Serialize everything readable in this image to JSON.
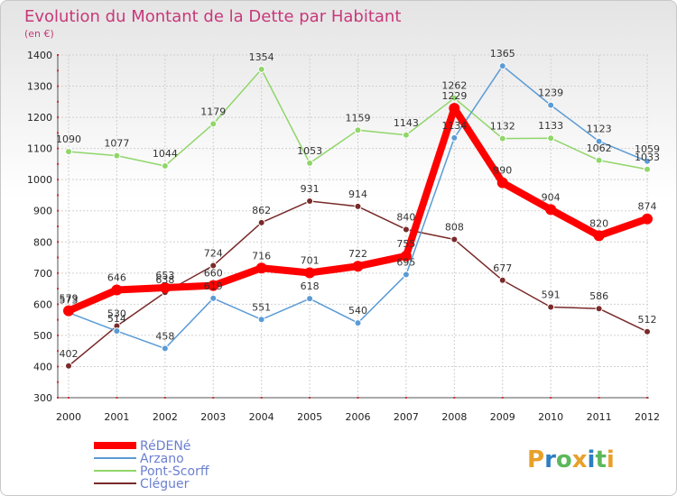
{
  "chart_data": {
    "type": "line",
    "title": "Evolution du Montant de la Dette par Habitant",
    "subtitle": "(en €)",
    "x": [
      "2000",
      "2001",
      "2002",
      "2003",
      "2004",
      "2005",
      "2006",
      "2007",
      "2008",
      "2009",
      "2010",
      "2011",
      "2012"
    ],
    "ylim": [
      300,
      1400
    ],
    "yticks": [
      300,
      400,
      500,
      600,
      700,
      800,
      900,
      1000,
      1100,
      1200,
      1300,
      1400
    ],
    "grid": true,
    "legend_placement": "bottom-left",
    "series": [
      {
        "name": "RéDENé",
        "color": "#ff0000",
        "values": [
          579,
          646,
          653,
          660,
          716,
          701,
          722,
          755,
          1229,
          990,
          904,
          820,
          874
        ]
      },
      {
        "name": "Arzano",
        "color": "#5b9bd5",
        "values": [
          573,
          514,
          458,
          619,
          551,
          618,
          540,
          695,
          1134,
          1365,
          1239,
          1123,
          1059
        ]
      },
      {
        "name": "Pont-Scorff",
        "color": "#90d66a",
        "values": [
          1090,
          1077,
          1044,
          1179,
          1354,
          1053,
          1159,
          1143,
          1262,
          1132,
          1133,
          1062,
          1033
        ]
      },
      {
        "name": "Cléguer",
        "color": "#7a2a2a",
        "values": [
          402,
          530,
          638,
          724,
          862,
          931,
          914,
          840,
          808,
          677,
          591,
          586,
          512
        ]
      }
    ]
  },
  "logo": {
    "letters": [
      "P",
      "r",
      "o",
      "x",
      "i",
      "t",
      "i"
    ],
    "colors": [
      "#e8a02a",
      "#2c7fc4",
      "#5cb85c",
      "#e8a02a",
      "#2c7fc4",
      "#5cb85c",
      "#e8a02a"
    ]
  }
}
